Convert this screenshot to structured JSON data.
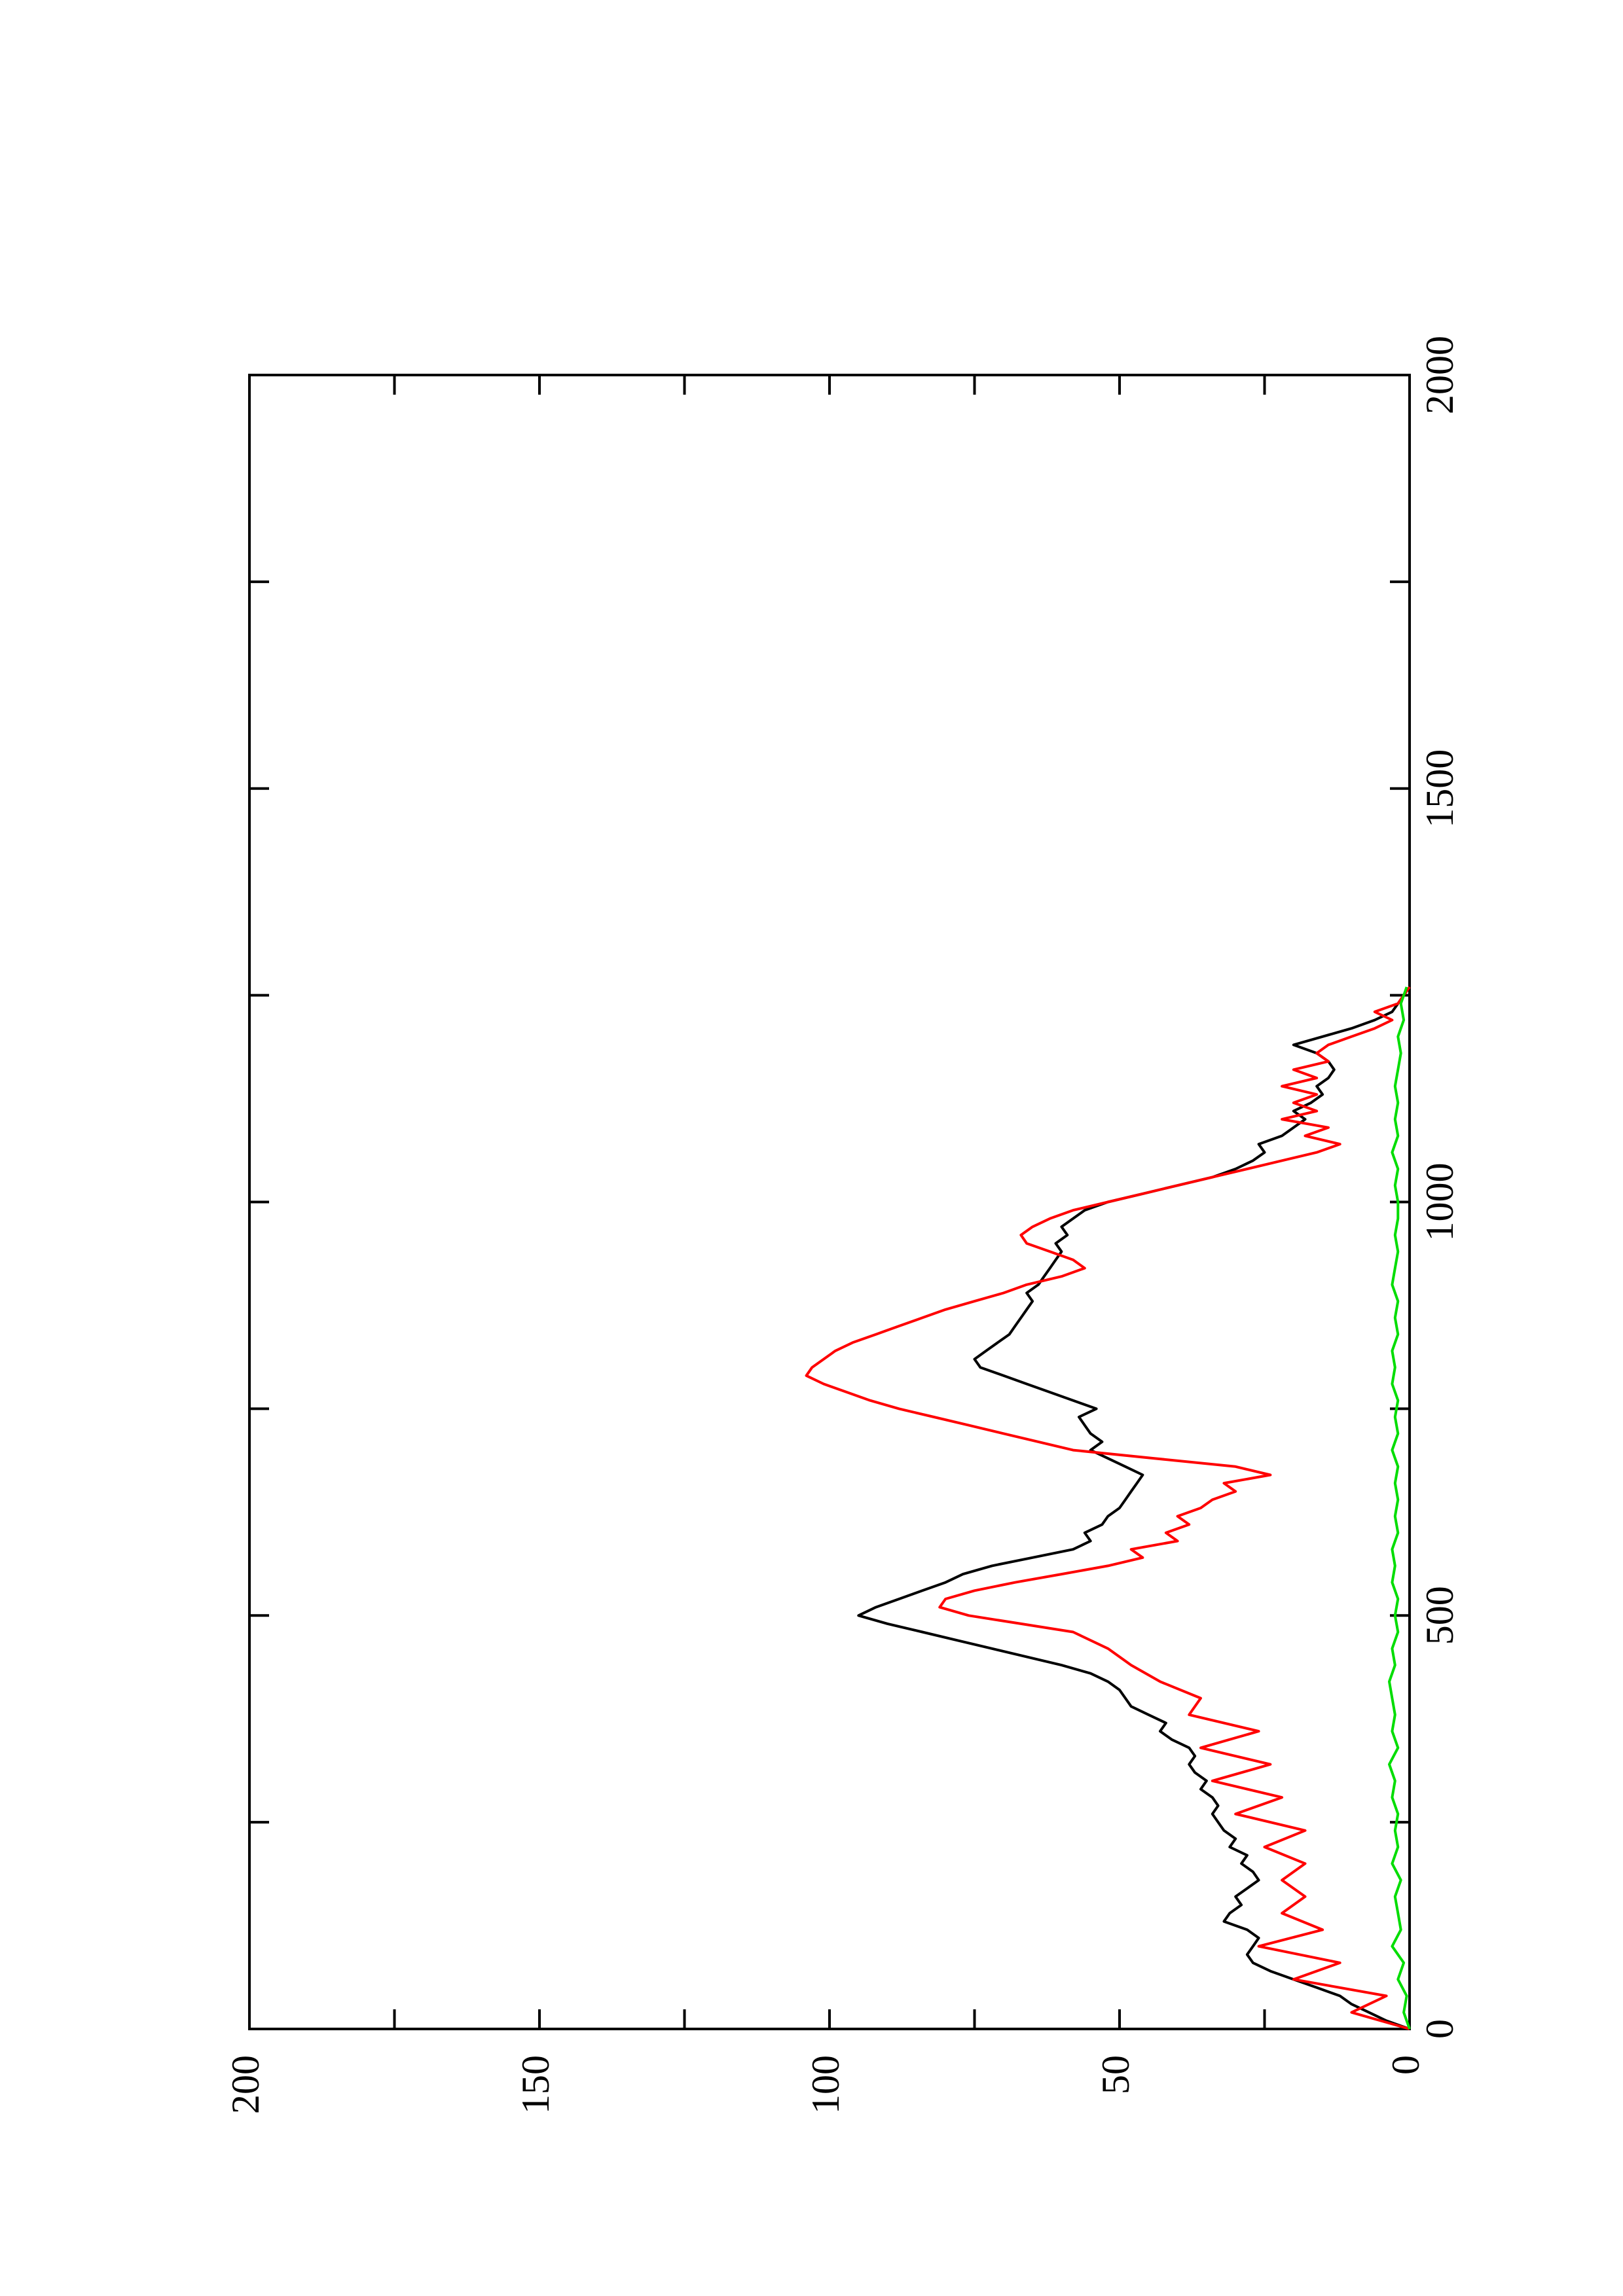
{
  "chart_data": {
    "type": "line",
    "orientation": "rotated-90-clockwise",
    "title": "",
    "xlabel": "",
    "ylabel": "",
    "xlim": [
      0,
      2000
    ],
    "ylim": [
      0,
      200
    ],
    "x_ticks": [
      0,
      500,
      1000,
      1500,
      2000
    ],
    "x_minor_ticks": [
      250,
      750,
      1250,
      1750
    ],
    "y_ticks": [
      0,
      50,
      100,
      150,
      200
    ],
    "y_minor_ticks": [
      25,
      75,
      125,
      175
    ],
    "x_tick_labels": [
      "0",
      "500",
      "1000",
      "1500",
      "2000"
    ],
    "y_tick_labels": [
      "0",
      "50",
      "100",
      "150",
      "200"
    ],
    "grid": false,
    "legend": "none",
    "series": [
      {
        "color": "#000000",
        "points": [
          [
            0,
            0
          ],
          [
            10,
            4
          ],
          [
            20,
            7
          ],
          [
            30,
            10
          ],
          [
            40,
            12
          ],
          [
            50,
            16
          ],
          [
            60,
            20
          ],
          [
            70,
            24
          ],
          [
            80,
            27
          ],
          [
            90,
            28
          ],
          [
            100,
            27
          ],
          [
            110,
            26
          ],
          [
            120,
            28
          ],
          [
            130,
            32
          ],
          [
            140,
            31
          ],
          [
            150,
            29
          ],
          [
            160,
            30
          ],
          [
            170,
            28
          ],
          [
            180,
            26
          ],
          [
            190,
            27
          ],
          [
            200,
            29
          ],
          [
            210,
            28
          ],
          [
            220,
            31
          ],
          [
            230,
            30
          ],
          [
            240,
            32
          ],
          [
            250,
            33
          ],
          [
            260,
            34
          ],
          [
            270,
            33
          ],
          [
            280,
            34
          ],
          [
            290,
            36
          ],
          [
            300,
            35
          ],
          [
            310,
            37
          ],
          [
            320,
            38
          ],
          [
            330,
            37
          ],
          [
            340,
            38
          ],
          [
            350,
            41
          ],
          [
            360,
            43
          ],
          [
            370,
            42
          ],
          [
            380,
            45
          ],
          [
            390,
            48
          ],
          [
            400,
            49
          ],
          [
            410,
            50
          ],
          [
            420,
            52
          ],
          [
            430,
            55
          ],
          [
            440,
            60
          ],
          [
            450,
            66
          ],
          [
            460,
            72
          ],
          [
            470,
            78
          ],
          [
            480,
            84
          ],
          [
            490,
            90
          ],
          [
            500,
            95
          ],
          [
            510,
            92
          ],
          [
            520,
            88
          ],
          [
            530,
            84
          ],
          [
            540,
            80
          ],
          [
            550,
            77
          ],
          [
            560,
            72
          ],
          [
            570,
            65
          ],
          [
            580,
            58
          ],
          [
            590,
            55
          ],
          [
            600,
            56
          ],
          [
            610,
            53
          ],
          [
            620,
            52
          ],
          [
            630,
            50
          ],
          [
            640,
            49
          ],
          [
            650,
            48
          ],
          [
            660,
            47
          ],
          [
            670,
            46
          ],
          [
            680,
            49
          ],
          [
            690,
            52
          ],
          [
            700,
            55
          ],
          [
            710,
            53
          ],
          [
            720,
            55
          ],
          [
            730,
            56
          ],
          [
            740,
            57
          ],
          [
            750,
            54
          ],
          [
            760,
            58
          ],
          [
            770,
            62
          ],
          [
            780,
            66
          ],
          [
            790,
            70
          ],
          [
            800,
            74
          ],
          [
            810,
            75
          ],
          [
            820,
            73
          ],
          [
            830,
            71
          ],
          [
            840,
            69
          ],
          [
            850,
            68
          ],
          [
            860,
            67
          ],
          [
            870,
            66
          ],
          [
            880,
            65
          ],
          [
            890,
            66
          ],
          [
            900,
            64
          ],
          [
            910,
            63
          ],
          [
            920,
            62
          ],
          [
            930,
            61
          ],
          [
            940,
            60
          ],
          [
            950,
            61
          ],
          [
            960,
            59
          ],
          [
            970,
            60
          ],
          [
            980,
            58
          ],
          [
            990,
            56
          ],
          [
            1000,
            52
          ],
          [
            1010,
            46
          ],
          [
            1020,
            40
          ],
          [
            1030,
            34
          ],
          [
            1040,
            30
          ],
          [
            1050,
            27
          ],
          [
            1060,
            25
          ],
          [
            1070,
            26
          ],
          [
            1080,
            22
          ],
          [
            1090,
            20
          ],
          [
            1100,
            18
          ],
          [
            1110,
            20
          ],
          [
            1120,
            17
          ],
          [
            1130,
            15
          ],
          [
            1140,
            16
          ],
          [
            1150,
            14
          ],
          [
            1160,
            13
          ],
          [
            1170,
            14
          ],
          [
            1180,
            16
          ],
          [
            1190,
            20
          ],
          [
            1200,
            15
          ],
          [
            1210,
            10
          ],
          [
            1220,
            6
          ],
          [
            1230,
            3
          ],
          [
            1240,
            2
          ],
          [
            1250,
            1
          ],
          [
            1260,
            0
          ]
        ]
      },
      {
        "color": "#ff0000",
        "points": [
          [
            0,
            0
          ],
          [
            20,
            10
          ],
          [
            40,
            4
          ],
          [
            60,
            20
          ],
          [
            80,
            12
          ],
          [
            100,
            26
          ],
          [
            120,
            15
          ],
          [
            140,
            22
          ],
          [
            160,
            18
          ],
          [
            180,
            22
          ],
          [
            200,
            18
          ],
          [
            220,
            25
          ],
          [
            240,
            18
          ],
          [
            260,
            30
          ],
          [
            280,
            22
          ],
          [
            300,
            34
          ],
          [
            320,
            24
          ],
          [
            340,
            36
          ],
          [
            360,
            26
          ],
          [
            380,
            38
          ],
          [
            400,
            36
          ],
          [
            420,
            43
          ],
          [
            440,
            48
          ],
          [
            460,
            52
          ],
          [
            480,
            58
          ],
          [
            490,
            67
          ],
          [
            500,
            76
          ],
          [
            510,
            81
          ],
          [
            520,
            80
          ],
          [
            530,
            75
          ],
          [
            540,
            68
          ],
          [
            550,
            60
          ],
          [
            560,
            52
          ],
          [
            570,
            46
          ],
          [
            580,
            48
          ],
          [
            590,
            40
          ],
          [
            600,
            42
          ],
          [
            610,
            38
          ],
          [
            620,
            40
          ],
          [
            630,
            36
          ],
          [
            640,
            34
          ],
          [
            650,
            30
          ],
          [
            660,
            32
          ],
          [
            670,
            24
          ],
          [
            680,
            30
          ],
          [
            690,
            44
          ],
          [
            700,
            58
          ],
          [
            710,
            64
          ],
          [
            720,
            70
          ],
          [
            730,
            76
          ],
          [
            740,
            82
          ],
          [
            750,
            88
          ],
          [
            760,
            93
          ],
          [
            770,
            97
          ],
          [
            780,
            101
          ],
          [
            790,
            104
          ],
          [
            800,
            103
          ],
          [
            810,
            101
          ],
          [
            820,
            99
          ],
          [
            830,
            96
          ],
          [
            840,
            92
          ],
          [
            850,
            88
          ],
          [
            860,
            84
          ],
          [
            870,
            80
          ],
          [
            880,
            75
          ],
          [
            890,
            70
          ],
          [
            900,
            66
          ],
          [
            910,
            60
          ],
          [
            920,
            56
          ],
          [
            930,
            58
          ],
          [
            940,
            62
          ],
          [
            950,
            66
          ],
          [
            960,
            67
          ],
          [
            970,
            65
          ],
          [
            980,
            62
          ],
          [
            990,
            58
          ],
          [
            1000,
            52
          ],
          [
            1010,
            46
          ],
          [
            1020,
            40
          ],
          [
            1030,
            34
          ],
          [
            1040,
            28
          ],
          [
            1050,
            22
          ],
          [
            1060,
            16
          ],
          [
            1070,
            12
          ],
          [
            1080,
            18
          ],
          [
            1090,
            14
          ],
          [
            1100,
            22
          ],
          [
            1110,
            16
          ],
          [
            1120,
            20
          ],
          [
            1130,
            16
          ],
          [
            1140,
            22
          ],
          [
            1150,
            16
          ],
          [
            1160,
            20
          ],
          [
            1170,
            14
          ],
          [
            1180,
            16
          ],
          [
            1190,
            14
          ],
          [
            1200,
            10
          ],
          [
            1210,
            6
          ],
          [
            1220,
            3
          ],
          [
            1230,
            6
          ],
          [
            1240,
            2
          ],
          [
            1250,
            1
          ],
          [
            1260,
            0
          ]
        ]
      },
      {
        "color": "#00dd00",
        "points": [
          [
            0,
            0
          ],
          [
            20,
            1
          ],
          [
            40,
            0.5
          ],
          [
            60,
            2
          ],
          [
            80,
            1
          ],
          [
            100,
            3
          ],
          [
            120,
            1.5
          ],
          [
            140,
            2
          ],
          [
            160,
            2.5
          ],
          [
            180,
            1.5
          ],
          [
            200,
            3
          ],
          [
            220,
            2
          ],
          [
            240,
            2.5
          ],
          [
            260,
            2
          ],
          [
            280,
            3
          ],
          [
            300,
            2.5
          ],
          [
            320,
            3.5
          ],
          [
            340,
            2
          ],
          [
            360,
            3
          ],
          [
            380,
            2.5
          ],
          [
            400,
            3
          ],
          [
            420,
            3.5
          ],
          [
            440,
            2.5
          ],
          [
            460,
            3
          ],
          [
            480,
            2
          ],
          [
            500,
            2.5
          ],
          [
            520,
            2
          ],
          [
            540,
            3
          ],
          [
            560,
            2.5
          ],
          [
            580,
            3
          ],
          [
            600,
            2
          ],
          [
            620,
            2.5
          ],
          [
            640,
            2
          ],
          [
            660,
            2.5
          ],
          [
            680,
            2
          ],
          [
            700,
            3
          ],
          [
            720,
            2
          ],
          [
            740,
            2.5
          ],
          [
            760,
            2
          ],
          [
            780,
            3
          ],
          [
            800,
            2.5
          ],
          [
            820,
            3
          ],
          [
            840,
            2
          ],
          [
            860,
            2.5
          ],
          [
            880,
            2
          ],
          [
            900,
            3
          ],
          [
            920,
            2.5
          ],
          [
            940,
            2
          ],
          [
            960,
            2.5
          ],
          [
            980,
            2
          ],
          [
            1000,
            2
          ],
          [
            1020,
            2.5
          ],
          [
            1040,
            2
          ],
          [
            1060,
            3
          ],
          [
            1080,
            2
          ],
          [
            1100,
            2.5
          ],
          [
            1120,
            2
          ],
          [
            1140,
            2.5
          ],
          [
            1160,
            2
          ],
          [
            1180,
            1.5
          ],
          [
            1200,
            2
          ],
          [
            1220,
            1
          ],
          [
            1240,
            1.5
          ],
          [
            1260,
            0.5
          ]
        ]
      }
    ]
  }
}
